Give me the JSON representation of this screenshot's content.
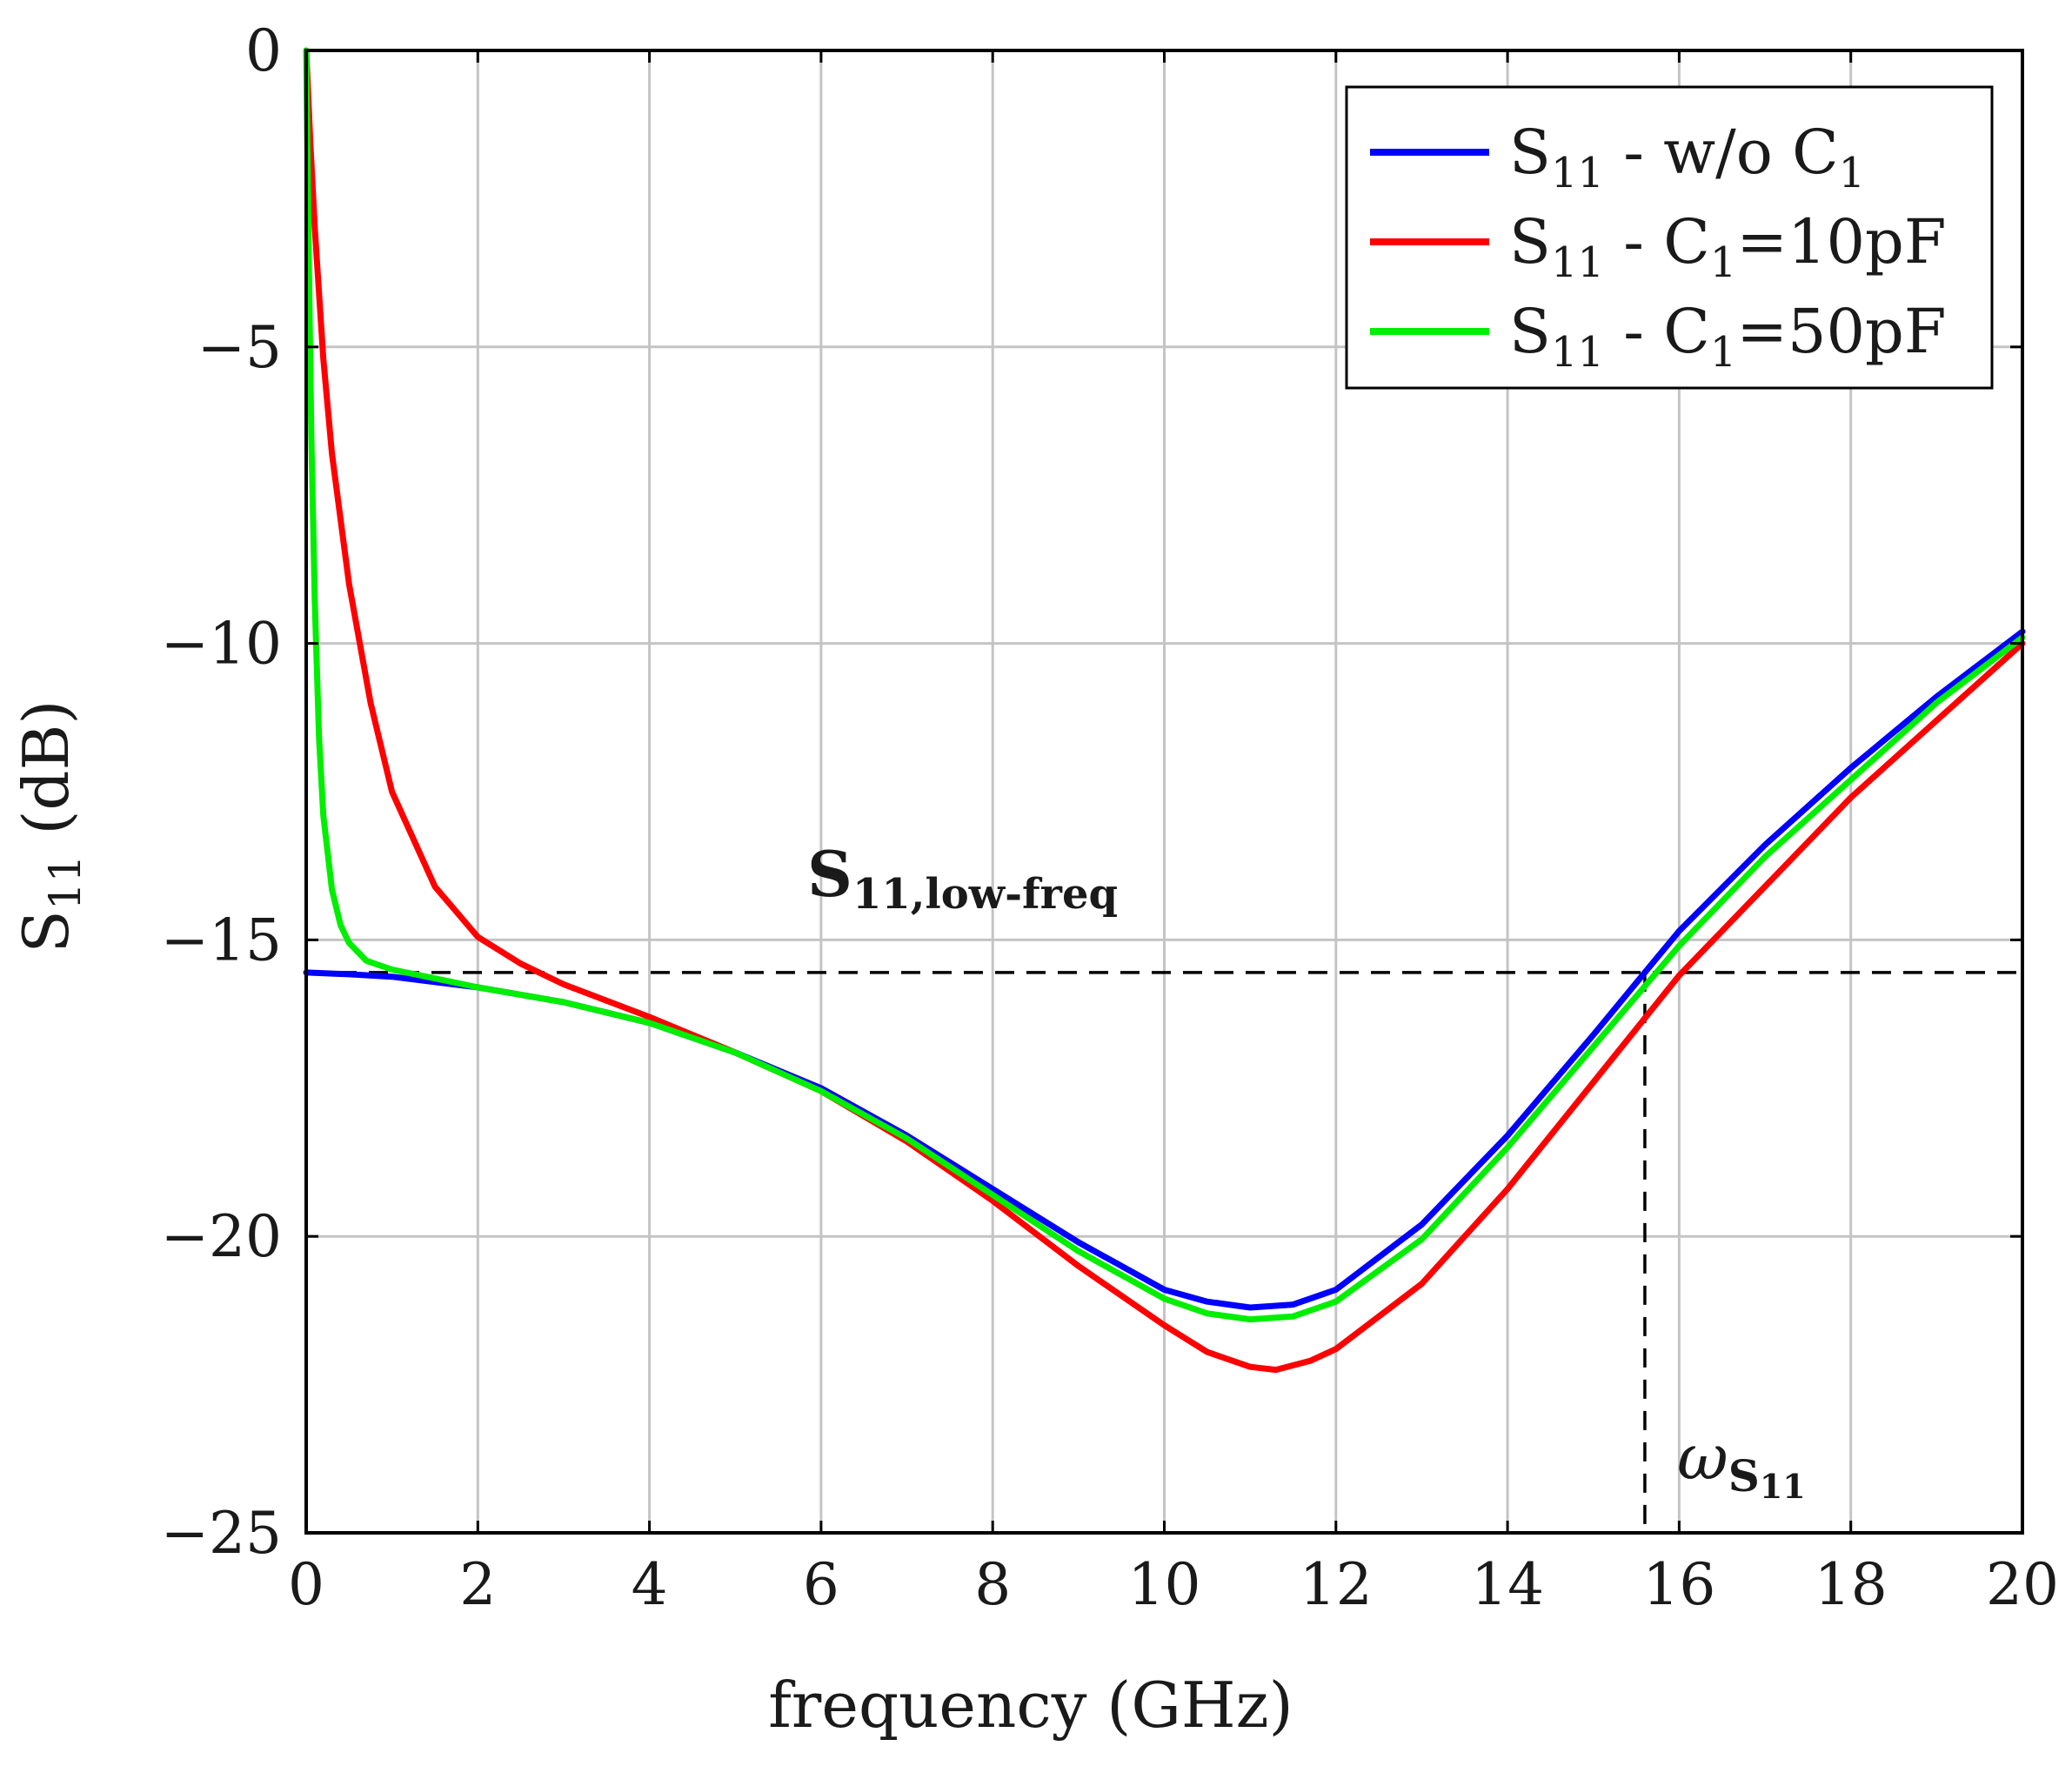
{
  "chart_data": {
    "type": "line",
    "title": "",
    "xlabel": "frequency (GHz)",
    "ylabel": {
      "main": "S",
      "sub": "11",
      "rest": " (dB)"
    },
    "xlim": [
      0,
      20
    ],
    "ylim": [
      -25,
      0
    ],
    "xticks": [
      0,
      2,
      4,
      6,
      8,
      10,
      12,
      14,
      16,
      18,
      20
    ],
    "xtick_labels": [
      "0",
      "2",
      "4",
      "6",
      "8",
      "10",
      "12",
      "14",
      "16",
      "18",
      "20"
    ],
    "yticks": [
      0,
      -5,
      -10,
      -15,
      -20,
      -25
    ],
    "ytick_labels": [
      "0",
      "−5",
      "−10",
      "−15",
      "−20",
      "−25"
    ],
    "grid": true,
    "legend_position": "top-right",
    "series": [
      {
        "name": "S11 - w/o C1",
        "legend": {
          "main": "S",
          "sub": "11",
          "mid": " - w/o C",
          "sub2": "1",
          "tail": ""
        },
        "color": "#0000ff",
        "x": [
          0,
          0.5,
          1,
          2,
          3,
          4,
          5,
          6,
          7,
          8,
          9,
          10,
          10.5,
          11,
          11.5,
          12,
          13,
          14,
          15,
          15.6,
          16,
          17,
          18,
          19,
          20
        ],
        "y": [
          -15.55,
          -15.58,
          -15.62,
          -15.8,
          -16.05,
          -16.4,
          -16.9,
          -17.5,
          -18.3,
          -19.2,
          -20.1,
          -20.9,
          -21.1,
          -21.2,
          -21.15,
          -20.9,
          -19.8,
          -18.3,
          -16.6,
          -15.55,
          -14.85,
          -13.4,
          -12.1,
          -10.9,
          -9.8
        ]
      },
      {
        "name": "S11 - C1=10pF",
        "legend": {
          "main": "S",
          "sub": "11",
          "mid": " - C",
          "sub2": "1",
          "tail": "=10pF"
        },
        "color": "#ff0000",
        "x": [
          0,
          0.05,
          0.1,
          0.2,
          0.3,
          0.5,
          0.75,
          1,
          1.5,
          2,
          2.5,
          3,
          4,
          5,
          6,
          7,
          8,
          9,
          10,
          10.5,
          11,
          11.3,
          11.7,
          12,
          13,
          14,
          15,
          16,
          17,
          18,
          19,
          20
        ],
        "y": [
          0,
          -1.6,
          -3.0,
          -5.2,
          -6.8,
          -9.0,
          -11.0,
          -12.5,
          -14.1,
          -14.95,
          -15.4,
          -15.75,
          -16.3,
          -16.9,
          -17.55,
          -18.4,
          -19.4,
          -20.5,
          -21.5,
          -21.95,
          -22.2,
          -22.25,
          -22.1,
          -21.9,
          -20.8,
          -19.2,
          -17.4,
          -15.6,
          -14.1,
          -12.6,
          -11.3,
          -10.0
        ]
      },
      {
        "name": "S11 - C1=50pF",
        "legend": {
          "main": "S",
          "sub": "11",
          "mid": " - C",
          "sub2": "1",
          "tail": "=50pF"
        },
        "color": "#00ee00",
        "x": [
          0,
          0.03,
          0.06,
          0.1,
          0.15,
          0.2,
          0.3,
          0.4,
          0.5,
          0.7,
          1,
          1.5,
          2,
          3,
          4,
          5,
          6,
          7,
          8,
          9,
          10,
          10.5,
          11,
          11.5,
          12,
          13,
          14,
          15,
          16,
          17,
          18,
          19,
          20
        ],
        "y": [
          0,
          -3.5,
          -6.5,
          -9.3,
          -11.6,
          -12.9,
          -14.15,
          -14.75,
          -15.05,
          -15.35,
          -15.5,
          -15.65,
          -15.8,
          -16.05,
          -16.4,
          -16.9,
          -17.55,
          -18.35,
          -19.3,
          -20.25,
          -21.05,
          -21.3,
          -21.4,
          -21.35,
          -21.1,
          -20.05,
          -18.5,
          -16.8,
          -15.1,
          -13.6,
          -12.3,
          -11.0,
          -9.9
        ]
      }
    ],
    "reference_lines": {
      "horizontal_y": -15.55,
      "vertical_x": 15.6
    },
    "annotations": {
      "low_freq": {
        "main": "S",
        "sub": "11,low-freq"
      },
      "omega": {
        "main": "ω",
        "sub": "S",
        "subsub": "11"
      }
    }
  }
}
